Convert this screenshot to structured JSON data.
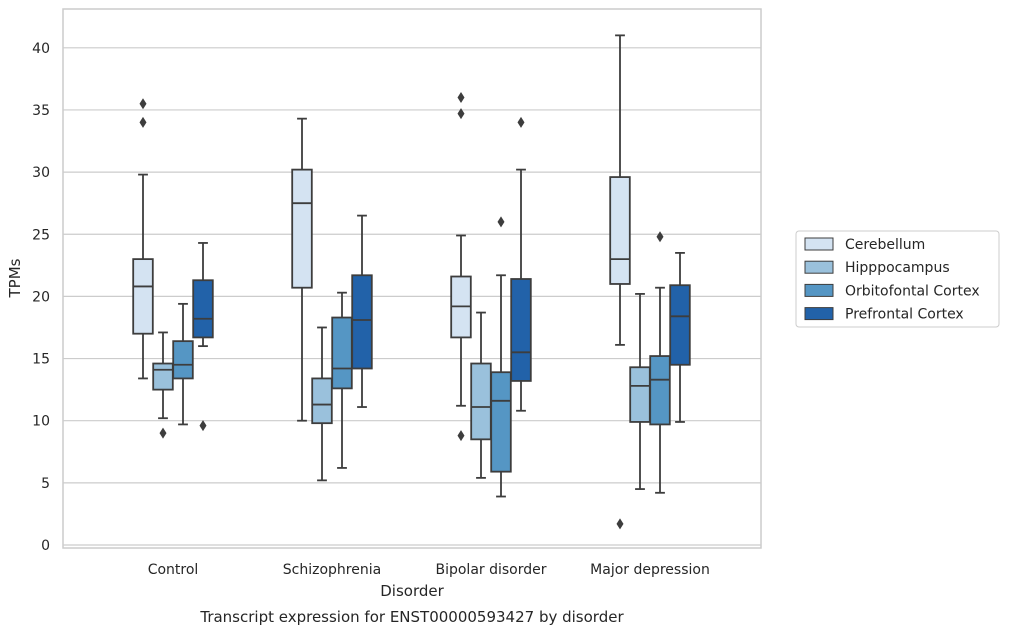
{
  "caption": "Transcript expression for ENST00000593427 by disorder",
  "chart_data": {
    "type": "box",
    "title": "",
    "xlabel": "Disorder",
    "ylabel": "TPMs",
    "ylim": [
      -0.2,
      43
    ],
    "yticks": [
      0,
      5,
      10,
      15,
      20,
      25,
      30,
      35,
      40
    ],
    "grid": "horizontal",
    "legend": "right",
    "categories": [
      "Control",
      "Schizophrenia",
      "Bipolar disorder",
      "Major depression"
    ],
    "series": [
      {
        "name": "Cerebellum",
        "color": "#d4e3f2",
        "boxes": [
          {
            "whisker_low": 13.4,
            "q1": 17.0,
            "median": 20.8,
            "q3": 23.0,
            "whisker_high": 29.8,
            "outliers": [
              34.0,
              35.5
            ]
          },
          {
            "whisker_low": 10.0,
            "q1": 20.7,
            "median": 27.5,
            "q3": 30.2,
            "whisker_high": 34.3,
            "outliers": []
          },
          {
            "whisker_low": 11.2,
            "q1": 16.7,
            "median": 19.2,
            "q3": 21.6,
            "whisker_high": 24.9,
            "outliers": [
              8.8,
              34.7,
              36.0
            ]
          },
          {
            "whisker_low": 16.1,
            "q1": 21.0,
            "median": 23.0,
            "q3": 29.6,
            "whisker_high": 41.0,
            "outliers": [
              1.7
            ]
          }
        ]
      },
      {
        "name": "Hipppocampus",
        "color": "#9ac1dc",
        "boxes": [
          {
            "whisker_low": 10.2,
            "q1": 12.5,
            "median": 14.1,
            "q3": 14.6,
            "whisker_high": 17.1,
            "outliers": [
              9.0
            ]
          },
          {
            "whisker_low": 5.2,
            "q1": 9.8,
            "median": 11.3,
            "q3": 13.4,
            "whisker_high": 17.5,
            "outliers": []
          },
          {
            "whisker_low": 5.4,
            "q1": 8.5,
            "median": 11.1,
            "q3": 14.6,
            "whisker_high": 18.7,
            "outliers": []
          },
          {
            "whisker_low": 4.5,
            "q1": 9.9,
            "median": 12.8,
            "q3": 14.3,
            "whisker_high": 20.2,
            "outliers": []
          }
        ]
      },
      {
        "name": "Orbitofontal Cortex",
        "color": "#5596c4",
        "boxes": [
          {
            "whisker_low": 9.7,
            "q1": 13.4,
            "median": 14.5,
            "q3": 16.4,
            "whisker_high": 19.4,
            "outliers": []
          },
          {
            "whisker_low": 6.2,
            "q1": 12.6,
            "median": 14.2,
            "q3": 18.3,
            "whisker_high": 20.3,
            "outliers": []
          },
          {
            "whisker_low": 3.9,
            "q1": 5.9,
            "median": 11.6,
            "q3": 13.9,
            "whisker_high": 21.7,
            "outliers": [
              26.0
            ]
          },
          {
            "whisker_low": 4.2,
            "q1": 9.7,
            "median": 13.3,
            "q3": 15.2,
            "whisker_high": 20.7,
            "outliers": [
              24.8
            ]
          }
        ]
      },
      {
        "name": "Prefrontal Cortex",
        "color": "#2262a9",
        "boxes": [
          {
            "whisker_low": 16.0,
            "q1": 16.7,
            "median": 18.2,
            "q3": 21.3,
            "whisker_high": 24.3,
            "outliers": [
              9.6
            ]
          },
          {
            "whisker_low": 11.1,
            "q1": 14.2,
            "median": 18.1,
            "q3": 21.7,
            "whisker_high": 26.5,
            "outliers": []
          },
          {
            "whisker_low": 10.8,
            "q1": 13.2,
            "median": 15.5,
            "q3": 21.4,
            "whisker_high": 30.2,
            "outliers": [
              34.0
            ]
          },
          {
            "whisker_low": 9.9,
            "q1": 14.5,
            "median": 18.4,
            "q3": 20.9,
            "whisker_high": 23.5,
            "outliers": []
          }
        ]
      }
    ]
  }
}
